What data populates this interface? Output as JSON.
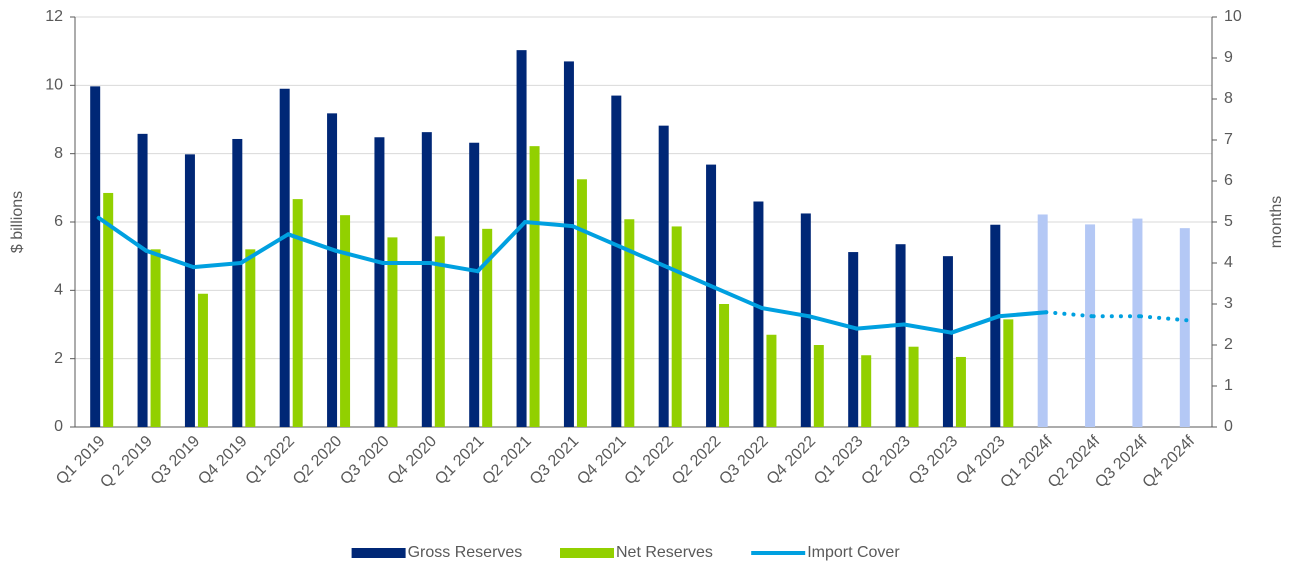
{
  "chart_data": {
    "type": "bar_line",
    "categories": [
      "Q1 2019",
      "Q 2 2019",
      "Q3 2019",
      "Q4 2019",
      "Q1 2022",
      "Q2 2020",
      "Q3 2020",
      "Q4 2020",
      "Q1 2021",
      "Q2 2021",
      "Q3 2021",
      "Q4 2021",
      "Q1 2022",
      "Q2 2022",
      "Q3 2022",
      "Q4 2022",
      "Q1 2023",
      "Q2 2023",
      "Q3 2023",
      "Q4 2023",
      "Q1 2024f",
      "Q2 2024f",
      "Q3 2024f",
      "Q4 2024f"
    ],
    "series": [
      {
        "name": "Gross Reserves",
        "type": "bar",
        "color": "#002776",
        "colors": [
          "#002776",
          "#002776",
          "#002776",
          "#002776",
          "#002776",
          "#002776",
          "#002776",
          "#002776",
          "#002776",
          "#002776",
          "#002776",
          "#002776",
          "#002776",
          "#002776",
          "#002776",
          "#002776",
          "#002776",
          "#002776",
          "#002776",
          "#002776",
          "#b4c8f5",
          "#b4c8f5",
          "#b4c8f5",
          "#b4c8f5"
        ],
        "values": [
          9.97,
          8.58,
          7.98,
          8.43,
          9.9,
          9.18,
          8.48,
          8.63,
          8.32,
          11.03,
          10.7,
          9.7,
          8.82,
          7.68,
          6.6,
          6.25,
          5.12,
          5.35,
          5.0,
          5.92,
          6.22,
          5.93,
          6.1,
          5.82
        ]
      },
      {
        "name": "Net Reserves",
        "type": "bar",
        "color": "#92d000",
        "values": [
          6.85,
          5.2,
          3.9,
          5.2,
          6.67,
          6.2,
          5.55,
          5.58,
          5.8,
          8.22,
          7.25,
          6.08,
          5.87,
          3.6,
          2.7,
          2.4,
          2.1,
          2.35,
          2.05,
          3.15,
          null,
          null,
          null,
          null
        ]
      },
      {
        "name": "Import Cover",
        "type": "line",
        "axis": "y2",
        "color": "#00a0e0",
        "styles": [
          "solid",
          "solid",
          "solid",
          "solid",
          "solid",
          "solid",
          "solid",
          "solid",
          "solid",
          "solid",
          "solid",
          "solid",
          "solid",
          "solid",
          "solid",
          "solid",
          "solid",
          "solid",
          "solid",
          "solid",
          "dotted",
          "dotted",
          "dotted",
          "dotted"
        ],
        "values": [
          5.1,
          4.3,
          3.9,
          4.0,
          4.7,
          4.3,
          4.0,
          4.0,
          3.8,
          5.0,
          4.9,
          4.4,
          3.9,
          3.4,
          2.9,
          2.7,
          2.4,
          2.5,
          2.3,
          2.7,
          2.8,
          2.7,
          2.7,
          2.6
        ]
      }
    ],
    "ylabel": "$ billions",
    "y2label": "months",
    "ylim": [
      0,
      12
    ],
    "yticks": [
      0,
      2,
      4,
      6,
      8,
      10,
      12
    ],
    "y2lim": [
      0,
      10
    ],
    "y2ticks": [
      0,
      1,
      2,
      3,
      4,
      5,
      6,
      7,
      8,
      9,
      10
    ],
    "grid": true,
    "legend": "bottom"
  }
}
